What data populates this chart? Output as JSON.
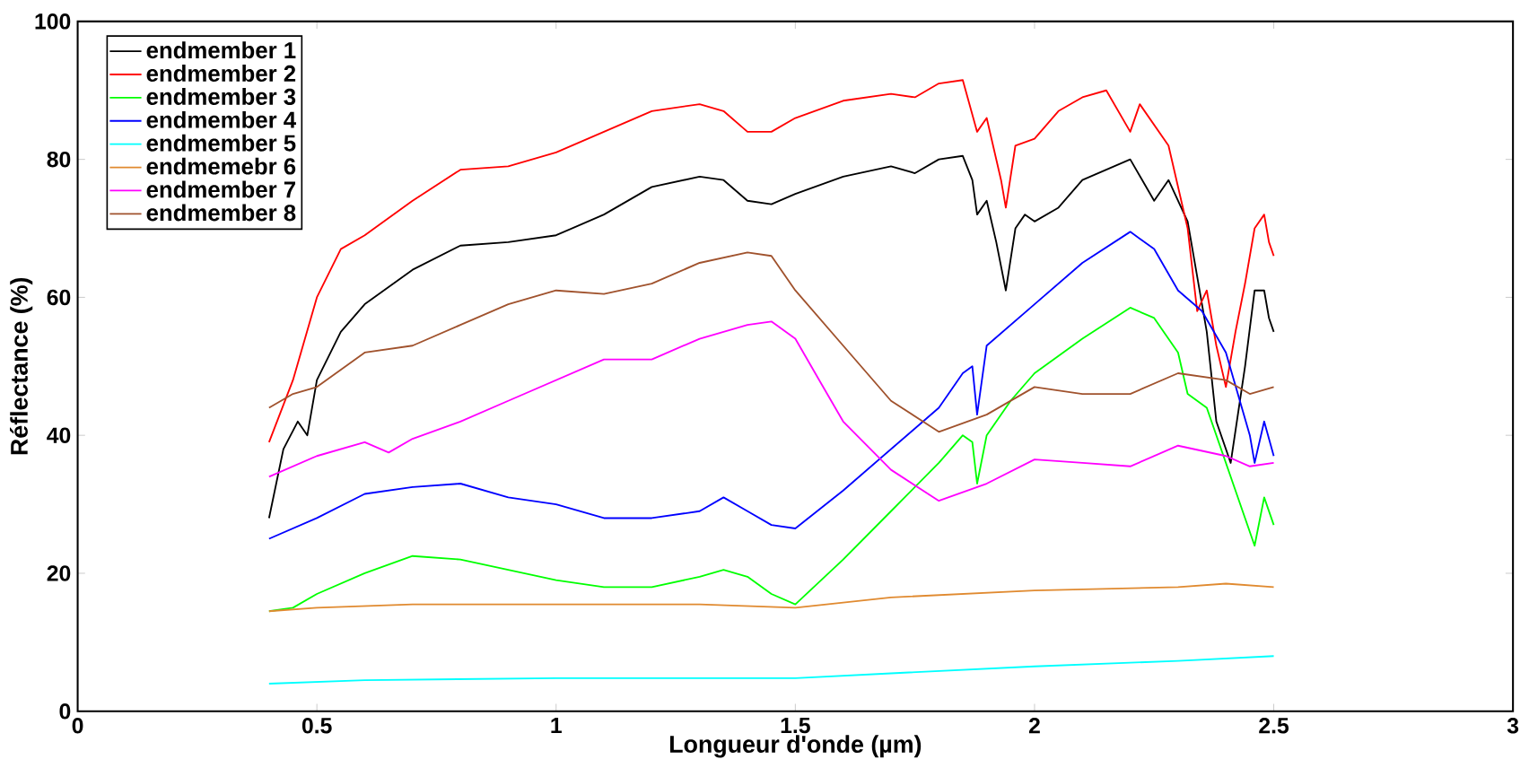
{
  "chart_data": {
    "type": "line",
    "xlabel": "Longueur d'onde (µm)",
    "ylabel": "Réflectance (%)",
    "xlim": [
      0,
      3
    ],
    "ylim": [
      0,
      100
    ],
    "xticks": [
      0,
      0.5,
      1,
      1.5,
      2,
      2.5,
      3
    ],
    "yticks": [
      0,
      20,
      40,
      60,
      80,
      100
    ],
    "grid": false,
    "legend": "top left",
    "marker": "none",
    "line_style": "solid",
    "series": [
      {
        "name": "endmember 1",
        "color": "#000000",
        "x": [
          0.4,
          0.43,
          0.46,
          0.48,
          0.5,
          0.55,
          0.6,
          0.7,
          0.8,
          0.9,
          1.0,
          1.1,
          1.2,
          1.3,
          1.35,
          1.4,
          1.45,
          1.5,
          1.6,
          1.7,
          1.75,
          1.8,
          1.85,
          1.87,
          1.88,
          1.9,
          1.92,
          1.94,
          1.96,
          1.98,
          2.0,
          2.05,
          2.1,
          2.15,
          2.2,
          2.25,
          2.28,
          2.32,
          2.36,
          2.38,
          2.41,
          2.44,
          2.46,
          2.48,
          2.49,
          2.5
        ],
        "values": [
          28,
          38,
          42,
          40,
          48,
          55,
          59,
          64,
          67.5,
          68,
          69,
          72,
          76,
          77.5,
          77,
          74,
          73.5,
          75,
          77.5,
          79,
          78,
          80,
          80.5,
          77,
          72,
          74,
          68,
          61,
          70,
          72,
          71,
          73,
          77,
          78.5,
          80,
          74,
          77,
          71,
          55,
          42,
          36,
          50,
          61,
          61,
          57,
          55
        ]
      },
      {
        "name": "endmember 2",
        "color": "#ff0000",
        "x": [
          0.4,
          0.45,
          0.5,
          0.55,
          0.6,
          0.7,
          0.8,
          0.9,
          1.0,
          1.1,
          1.2,
          1.3,
          1.35,
          1.4,
          1.45,
          1.5,
          1.6,
          1.7,
          1.75,
          1.8,
          1.85,
          1.88,
          1.9,
          1.93,
          1.94,
          1.96,
          2.0,
          2.05,
          2.1,
          2.15,
          2.2,
          2.22,
          2.28,
          2.32,
          2.34,
          2.36,
          2.38,
          2.4,
          2.42,
          2.44,
          2.46,
          2.48,
          2.49,
          2.5
        ],
        "values": [
          39,
          48,
          60,
          67,
          69,
          74,
          78.5,
          79,
          81,
          84,
          87,
          88,
          87,
          84,
          84,
          86,
          88.5,
          89.5,
          89,
          91,
          91.5,
          84,
          86,
          77,
          73,
          82,
          83,
          87,
          89,
          90,
          84,
          88,
          82,
          70,
          58,
          61,
          53,
          47,
          55,
          62,
          70,
          72,
          68,
          66
        ]
      },
      {
        "name": "endmember 3",
        "color": "#00ff00",
        "x": [
          0.4,
          0.45,
          0.5,
          0.6,
          0.7,
          0.8,
          0.9,
          1.0,
          1.1,
          1.2,
          1.3,
          1.35,
          1.4,
          1.45,
          1.5,
          1.6,
          1.7,
          1.8,
          1.85,
          1.87,
          1.88,
          1.9,
          1.95,
          2.0,
          2.1,
          2.2,
          2.25,
          2.3,
          2.32,
          2.36,
          2.4,
          2.44,
          2.46,
          2.48,
          2.5
        ],
        "values": [
          14.5,
          15,
          17,
          20,
          22.5,
          22,
          20.5,
          19,
          18,
          18,
          19.5,
          20.5,
          19.5,
          17,
          15.5,
          22,
          29,
          36,
          40,
          39,
          33,
          40,
          45,
          49,
          54,
          58.5,
          57,
          52,
          46,
          44,
          36,
          28,
          24,
          31,
          27
        ]
      },
      {
        "name": "endmember 4",
        "color": "#0000ff",
        "x": [
          0.4,
          0.5,
          0.6,
          0.7,
          0.8,
          0.9,
          1.0,
          1.1,
          1.2,
          1.3,
          1.35,
          1.4,
          1.45,
          1.5,
          1.6,
          1.7,
          1.8,
          1.85,
          1.87,
          1.88,
          1.9,
          2.0,
          2.1,
          2.2,
          2.25,
          2.3,
          2.35,
          2.4,
          2.45,
          2.46,
          2.48,
          2.5
        ],
        "values": [
          25,
          28,
          31.5,
          32.5,
          33,
          31,
          30,
          28,
          28,
          29,
          31,
          29,
          27,
          26.5,
          32,
          38,
          44,
          49,
          50,
          43,
          53,
          59,
          65,
          69.5,
          67,
          61,
          58,
          52,
          40,
          36,
          42,
          37
        ]
      },
      {
        "name": "endmember 5",
        "color": "#00ffff",
        "x": [
          0.4,
          0.6,
          1.0,
          1.5,
          1.7,
          2.0,
          2.3,
          2.5
        ],
        "values": [
          4,
          4.5,
          4.8,
          4.8,
          5.5,
          6.5,
          7.3,
          8
        ]
      },
      {
        "name": "endmemebr 6",
        "color": "#e08a30",
        "x": [
          0.4,
          0.5,
          0.7,
          1.0,
          1.3,
          1.5,
          1.7,
          2.0,
          2.3,
          2.4,
          2.5
        ],
        "values": [
          14.5,
          15,
          15.5,
          15.5,
          15.5,
          15,
          16.5,
          17.5,
          18,
          18.5,
          18
        ]
      },
      {
        "name": "endmember 7",
        "color": "#ff00ff",
        "x": [
          0.4,
          0.5,
          0.6,
          0.65,
          0.7,
          0.8,
          0.9,
          1.0,
          1.1,
          1.2,
          1.3,
          1.4,
          1.45,
          1.5,
          1.55,
          1.6,
          1.7,
          1.8,
          1.9,
          2.0,
          2.1,
          2.2,
          2.3,
          2.4,
          2.45,
          2.5
        ],
        "values": [
          34,
          37,
          39,
          37.5,
          39.5,
          42,
          45,
          48,
          51,
          51,
          54,
          56,
          56.5,
          54,
          48,
          42,
          35,
          30.5,
          33,
          36.5,
          36,
          35.5,
          38.5,
          37,
          35.5,
          36
        ]
      },
      {
        "name": "endmember 8",
        "color": "#a0522d",
        "x": [
          0.4,
          0.45,
          0.5,
          0.6,
          0.7,
          0.8,
          0.9,
          1.0,
          1.1,
          1.2,
          1.3,
          1.4,
          1.45,
          1.5,
          1.6,
          1.7,
          1.8,
          1.9,
          2.0,
          2.1,
          2.2,
          2.3,
          2.4,
          2.45,
          2.5
        ],
        "values": [
          44,
          46,
          47,
          52,
          53,
          56,
          59,
          61,
          60.5,
          62,
          65,
          66.5,
          66,
          61,
          53,
          45,
          40.5,
          43,
          47,
          46,
          46,
          49,
          48,
          46,
          47
        ]
      }
    ]
  }
}
